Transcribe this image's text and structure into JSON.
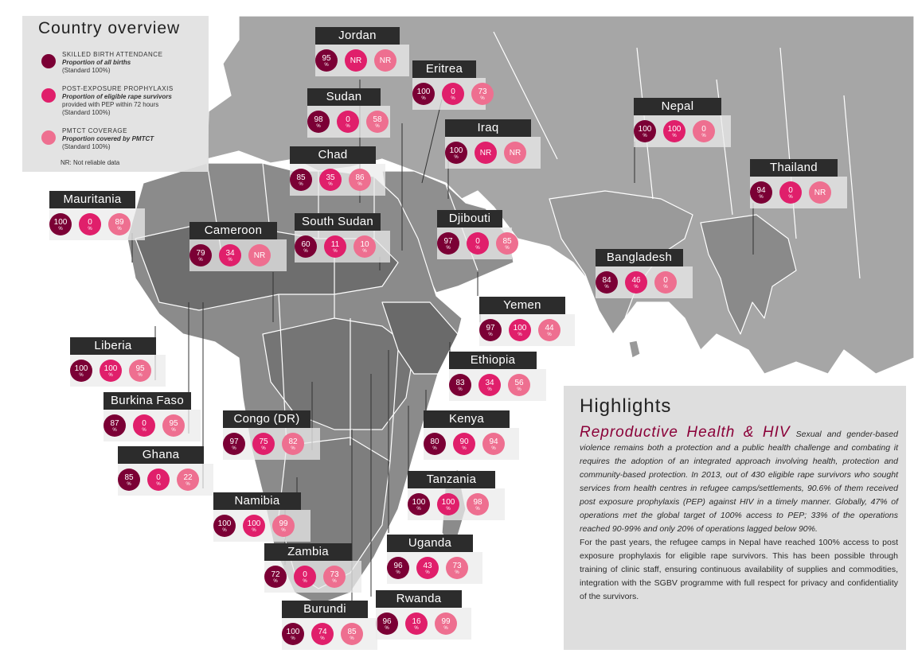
{
  "legend": {
    "title": "Country overview",
    "items": [
      {
        "t1": "SKILLED BIRTH ATTENDANCE",
        "t2": "Proportion of all births",
        "t3": "(Standard 100%)",
        "color": "#7b0035"
      },
      {
        "t1": "POST-EXPOSURE PROPHYLAXIS",
        "t2": "Proportion of eligible rape survivors",
        "t3": "provided with PEP within 72 hours",
        "t4": "(Standard 100%)",
        "color": "#e01f6b"
      },
      {
        "t1": "PMTCT COVERAGE",
        "t2": "Proportion covered by PMTCT",
        "t3": "(Standard 100%)",
        "color": "#ee6f90"
      }
    ],
    "nr_note": "NR: Not reliable data"
  },
  "percent_sign": "%",
  "countries": [
    {
      "name": "Jordan",
      "values": [
        "95",
        "NR",
        "NR"
      ]
    },
    {
      "name": "Eritrea",
      "values": [
        "100",
        "0",
        "73"
      ]
    },
    {
      "name": "Sudan",
      "values": [
        "98",
        "0",
        "58"
      ]
    },
    {
      "name": "Iraq",
      "values": [
        "100",
        "NR",
        "NR"
      ]
    },
    {
      "name": "Nepal",
      "values": [
        "100",
        "100",
        "0"
      ]
    },
    {
      "name": "Chad",
      "values": [
        "85",
        "35",
        "86"
      ]
    },
    {
      "name": "Thailand",
      "values": [
        "94",
        "0",
        "NR"
      ]
    },
    {
      "name": "Mauritania",
      "values": [
        "100",
        "0",
        "89"
      ]
    },
    {
      "name": "South Sudan",
      "values": [
        "60",
        "11",
        "10"
      ]
    },
    {
      "name": "Djibouti",
      "values": [
        "97",
        "0",
        "85"
      ]
    },
    {
      "name": "Cameroon",
      "values": [
        "79",
        "34",
        "NR"
      ]
    },
    {
      "name": "Bangladesh",
      "values": [
        "84",
        "46",
        "0"
      ]
    },
    {
      "name": "Yemen",
      "values": [
        "97",
        "100",
        "44"
      ]
    },
    {
      "name": "Liberia",
      "values": [
        "100",
        "100",
        "95"
      ]
    },
    {
      "name": "Ethiopia",
      "values": [
        "83",
        "34",
        "56"
      ]
    },
    {
      "name": "Burkina Faso",
      "values": [
        "87",
        "0",
        "95"
      ]
    },
    {
      "name": "Congo (DR)",
      "values": [
        "97",
        "75",
        "82"
      ]
    },
    {
      "name": "Kenya",
      "values": [
        "80",
        "90",
        "94"
      ]
    },
    {
      "name": "Ghana",
      "values": [
        "85",
        "0",
        "22"
      ]
    },
    {
      "name": "Tanzania",
      "values": [
        "100",
        "100",
        "98"
      ]
    },
    {
      "name": "Namibia",
      "values": [
        "100",
        "100",
        "99"
      ]
    },
    {
      "name": "Uganda",
      "values": [
        "96",
        "43",
        "73"
      ]
    },
    {
      "name": "Zambia",
      "values": [
        "72",
        "0",
        "73"
      ]
    },
    {
      "name": "Rwanda",
      "values": [
        "96",
        "16",
        "99"
      ]
    },
    {
      "name": "Burundi",
      "values": [
        "100",
        "74",
        "85"
      ]
    }
  ],
  "highlights": {
    "title": "Highlights",
    "subtitle": "Reproductive Health & HIV",
    "para1": "Sexual and gender-based violence remains both a protection and a public health challenge and combating it requires the adoption of an integrated approach involving health, protection and community-based protection. In 2013, out of 430 eligible rape survivors who sought services from health centres in refugee camps/settlements, 90.6% of them received post exposure prophylaxis (PEP) against HIV in a timely manner. Globally, 47% of operations met the global target of 100% access to PEP; 33% of the operations reached 90-99% and only 20% of operations lagged below 90%.",
    "para2": "For the past years, the refugee camps in Nepal have reached 100% access to post exposure prophylaxis for eligible rape survivors. This has been possible through training of clinic staff, ensuring continuous availability of supplies and commodities, integration with the SGBV programme with full respect for privacy and confidentiality of the survivors."
  },
  "colors": {
    "sba": "#7b0035",
    "pep": "#e01f6b",
    "pmtct": "#ee6f90",
    "land_dark": "#777777",
    "land_mid": "#8c8c8c",
    "land_light": "#a9a9a9",
    "label_bg": "#2c2c2c"
  }
}
